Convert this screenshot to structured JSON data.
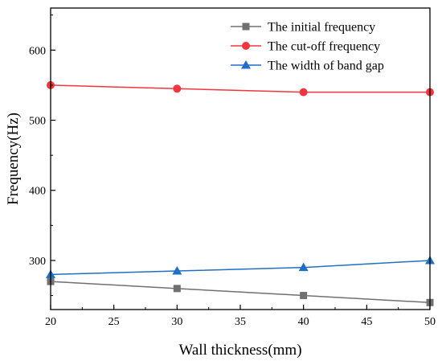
{
  "chart_data": {
    "type": "line",
    "xlabel": "Wall thickness(mm)",
    "ylabel": "Frequency(Hz)",
    "xlim": [
      20,
      50
    ],
    "ylim": [
      230,
      660
    ],
    "xticks": [
      20,
      25,
      30,
      35,
      40,
      45,
      50
    ],
    "yticks": [
      300,
      400,
      500,
      600
    ],
    "grid": false,
    "legend_position": "top-right",
    "x": [
      20,
      30,
      40,
      50
    ],
    "series": [
      {
        "name": "The initial frequency",
        "values": [
          270,
          260,
          250,
          240
        ],
        "color": "#707070",
        "marker": "square"
      },
      {
        "name": "The cut-off frequency",
        "values": [
          550,
          545,
          540,
          540
        ],
        "color": "#f0363c",
        "marker": "circle"
      },
      {
        "name": "The width of band gap",
        "values": [
          280,
          285,
          290,
          300
        ],
        "color": "#1f6fc4",
        "marker": "triangle"
      }
    ]
  }
}
